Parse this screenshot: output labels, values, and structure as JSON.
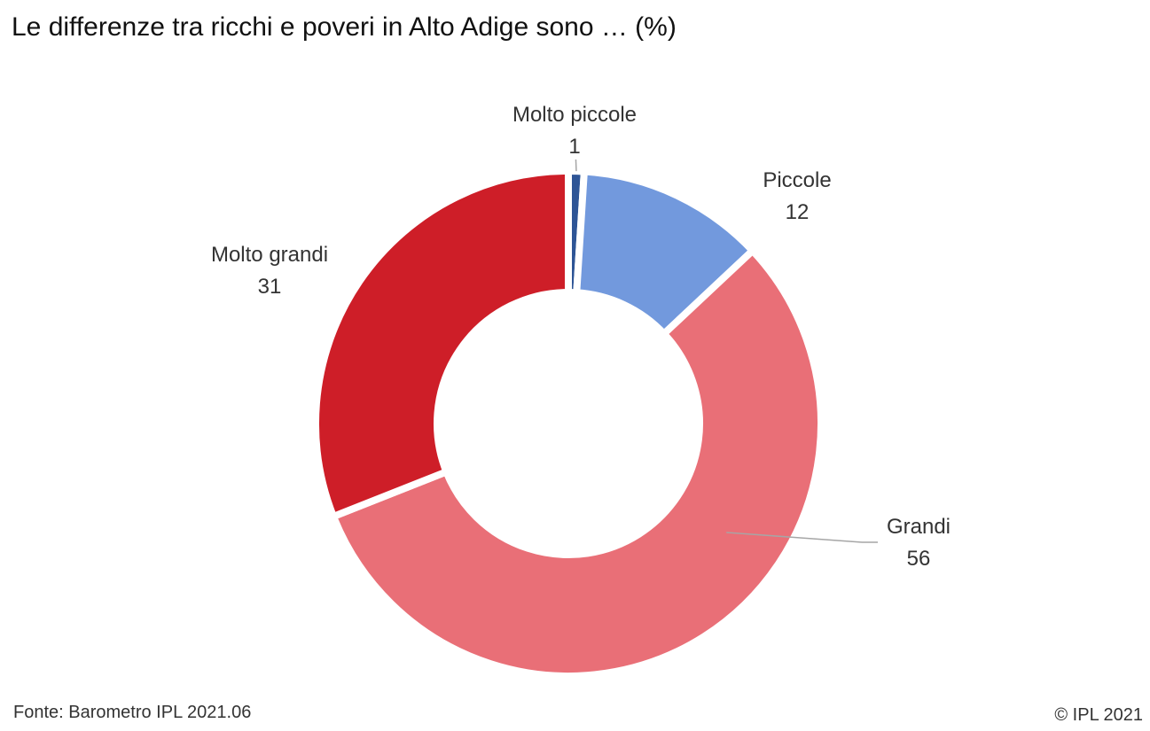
{
  "chart_data": {
    "type": "pie",
    "title": "Le differenze tra ricchi e poveri in Alto Adige sono … (%)",
    "donut": true,
    "slices": [
      {
        "label": "Molto piccole",
        "value": 1,
        "color": "#2E5596"
      },
      {
        "label": "Piccole",
        "value": 12,
        "color": "#7299DD"
      },
      {
        "label": "Grandi",
        "value": 56,
        "color": "#E96F77"
      },
      {
        "label": "Molto grandi",
        "value": 31,
        "color": "#CE1E28"
      }
    ]
  },
  "footer": {
    "source": "Fonte: Barometro IPL 2021.06",
    "copyright": "© IPL 2021"
  }
}
